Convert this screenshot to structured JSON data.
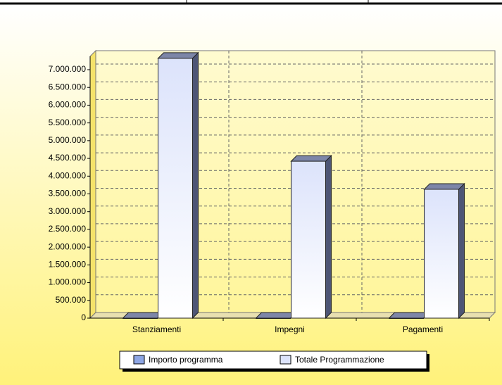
{
  "chart_data": {
    "type": "bar3d",
    "categories": [
      "Stanziamenti",
      "Impegni",
      "Pagamenti"
    ],
    "series": [
      {
        "name": "Importo programma",
        "color": "#8ea6e4",
        "values": [
          0,
          0,
          0
        ]
      },
      {
        "name": "Totale Programmazione",
        "color": "#dce3fb",
        "values": [
          7320000,
          4420000,
          3630000
        ]
      }
    ],
    "ylim": [
      0,
      7000000
    ],
    "yticks": [
      {
        "value": 0,
        "label": "0"
      },
      {
        "value": 500000,
        "label": "500.000"
      },
      {
        "value": 1000000,
        "label": "1.000.000"
      },
      {
        "value": 1500000,
        "label": "1.500.000"
      },
      {
        "value": 2000000,
        "label": "2.000.000"
      },
      {
        "value": 2500000,
        "label": "2.500.000"
      },
      {
        "value": 3000000,
        "label": "3.000.000"
      },
      {
        "value": 3500000,
        "label": "3.500.000"
      },
      {
        "value": 4000000,
        "label": "4.000.000"
      },
      {
        "value": 4500000,
        "label": "4.500.000"
      },
      {
        "value": 5000000,
        "label": "5.000.000"
      },
      {
        "value": 5500000,
        "label": "5.500.000"
      },
      {
        "value": 6000000,
        "label": "6.000.000"
      },
      {
        "value": 6500000,
        "label": "6.500.000"
      },
      {
        "value": 7000000,
        "label": "7.000.000"
      }
    ],
    "grid": true,
    "legend": "bottom"
  }
}
